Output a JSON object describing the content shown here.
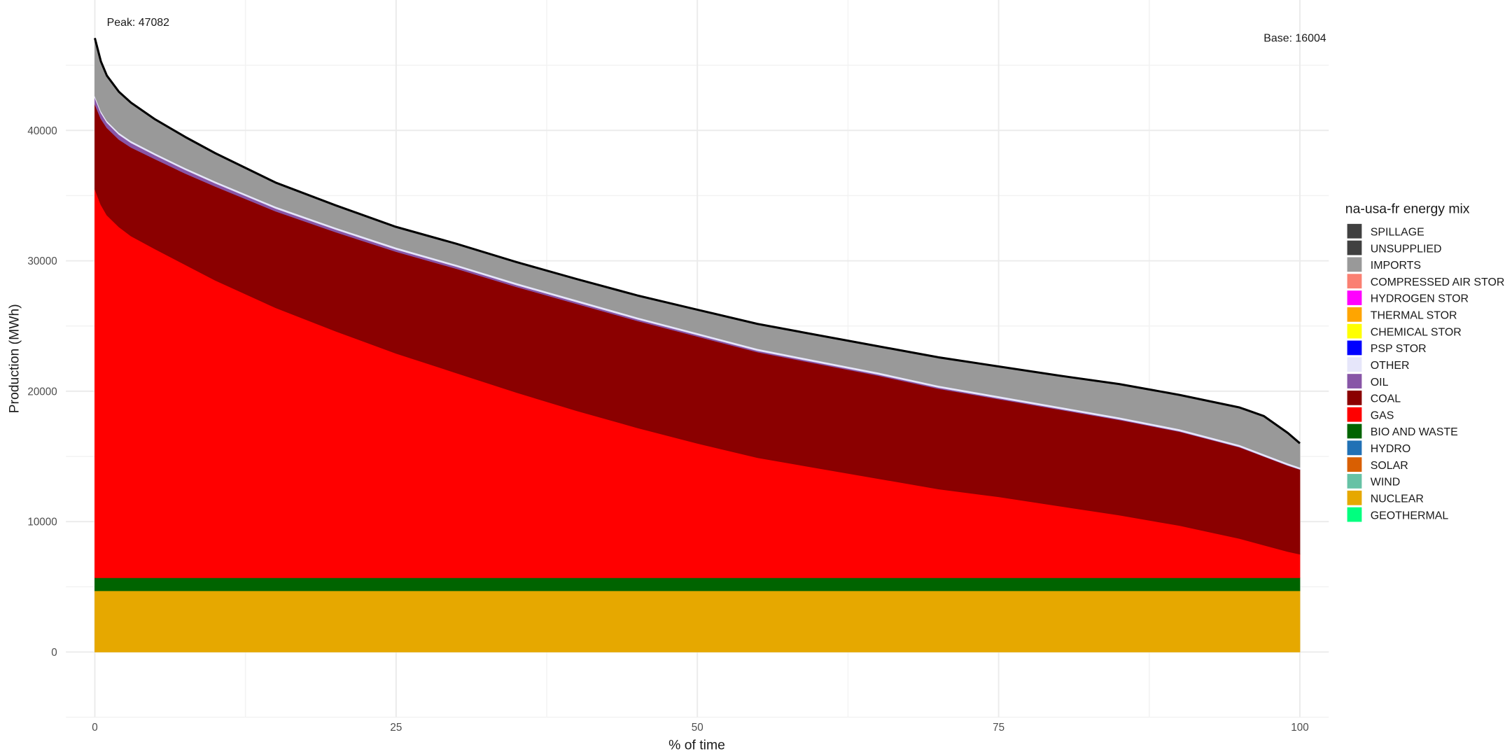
{
  "chart_data": {
    "type": "area",
    "title": "",
    "xlabel": "% of time",
    "ylabel": "Production (MWh)",
    "xlim": [
      -2.4,
      102.4
    ],
    "ylim": [
      -5000,
      50000
    ],
    "x_ticks": [
      0,
      25,
      50,
      75,
      100
    ],
    "y_ticks": [
      0,
      10000,
      20000,
      30000,
      40000
    ],
    "grid": true,
    "legend_position": "right",
    "legend_title": "na-usa-fr energy mix",
    "annotations": [
      {
        "text": "Peak: 47082",
        "x": 1,
        "y": 48000
      },
      {
        "text": "Base: 16004",
        "x": 97,
        "y": 46800
      }
    ],
    "legend": [
      {
        "name": "SPILLAGE",
        "color": "#404040"
      },
      {
        "name": "UNSUPPLIED",
        "color": "#404040"
      },
      {
        "name": "IMPORTS",
        "color": "#999999"
      },
      {
        "name": "COMPRESSED AIR STOR",
        "color": "#fa8072"
      },
      {
        "name": "HYDROGEN STOR",
        "color": "#ff00ff"
      },
      {
        "name": "THERMAL STOR",
        "color": "#ffa500"
      },
      {
        "name": "CHEMICAL STOR",
        "color": "#ffff00"
      },
      {
        "name": "PSP STOR",
        "color": "#0000ff"
      },
      {
        "name": "OTHER",
        "color": "#e6e6fa"
      },
      {
        "name": "OIL",
        "color": "#8856a7"
      },
      {
        "name": "COAL",
        "color": "#8b0000"
      },
      {
        "name": "GAS",
        "color": "#ff0000"
      },
      {
        "name": "BIO AND WASTE",
        "color": "#006400"
      },
      {
        "name": "HYDRO",
        "color": "#2171b5"
      },
      {
        "name": "SOLAR",
        "color": "#d95f02"
      },
      {
        "name": "WIND",
        "color": "#66c2a5"
      },
      {
        "name": "NUCLEAR",
        "color": "#e6a800"
      },
      {
        "name": "GEOTHERMAL",
        "color": "#00ff7f"
      }
    ],
    "x": [
      0,
      0.5,
      1,
      2,
      3,
      5,
      7.5,
      10,
      15,
      20,
      25,
      30,
      35,
      40,
      45,
      50,
      55,
      60,
      65,
      70,
      75,
      80,
      85,
      90,
      95,
      97,
      99,
      100
    ],
    "series": [
      {
        "name": "NUCLEAR",
        "color": "#e6a800",
        "values": [
          4700,
          4700,
          4700,
          4700,
          4700,
          4700,
          4700,
          4700,
          4700,
          4700,
          4700,
          4700,
          4700,
          4700,
          4700,
          4700,
          4700,
          4700,
          4700,
          4700,
          4700,
          4700,
          4700,
          4700,
          4700,
          4700,
          4700,
          4700
        ]
      },
      {
        "name": "BIO AND WASTE",
        "color": "#006400",
        "values": [
          1000,
          1000,
          1000,
          1000,
          1000,
          1000,
          1000,
          1000,
          1000,
          1000,
          1000,
          1000,
          1000,
          1000,
          1000,
          1000,
          1000,
          1000,
          1000,
          1000,
          1000,
          1000,
          1000,
          1000,
          1000,
          1000,
          1000,
          1000
        ]
      },
      {
        "name": "GAS",
        "color": "#ff0000",
        "values": [
          29800,
          28600,
          27800,
          26900,
          26200,
          25200,
          24000,
          22800,
          20700,
          18900,
          17200,
          15700,
          14200,
          12800,
          11500,
          10300,
          9200,
          8400,
          7600,
          6800,
          6200,
          5500,
          4800,
          4000,
          3000,
          2500,
          2000,
          1800
        ]
      },
      {
        "name": "COAL",
        "color": "#8b0000",
        "values": [
          6500,
          6600,
          6700,
          6700,
          6800,
          6900,
          7000,
          7200,
          7400,
          7600,
          7800,
          8000,
          8100,
          8200,
          8200,
          8200,
          8100,
          8000,
          7900,
          7700,
          7500,
          7400,
          7300,
          7200,
          7000,
          6800,
          6600,
          6500
        ]
      },
      {
        "name": "OIL",
        "color": "#8856a7",
        "values": [
          500,
          450,
          400,
          380,
          350,
          300,
          280,
          250,
          220,
          200,
          180,
          160,
          150,
          140,
          130,
          120,
          110,
          100,
          100,
          90,
          80,
          70,
          60,
          50,
          40,
          30,
          30,
          20
        ]
      },
      {
        "name": "OTHER",
        "color": "#e6e6fa",
        "values": [
          150,
          150,
          150,
          150,
          150,
          150,
          150,
          150,
          150,
          150,
          150,
          150,
          150,
          150,
          150,
          150,
          150,
          150,
          150,
          150,
          150,
          150,
          150,
          150,
          150,
          150,
          150,
          150
        ]
      },
      {
        "name": "IMPORTS",
        "color": "#999999",
        "values": [
          4432,
          3800,
          3450,
          3130,
          2930,
          2600,
          2370,
          2150,
          1830,
          1700,
          1570,
          1600,
          1600,
          1610,
          1670,
          1780,
          1890,
          1950,
          2000,
          2160,
          2270,
          2380,
          2540,
          2620,
          2860,
          2920,
          2320,
          1834
        ]
      }
    ],
    "total_line": {
      "name": "total",
      "color": "#000000",
      "values": [
        47082,
        45300,
        44200,
        42960,
        42130,
        40850,
        39500,
        38250,
        36000,
        34250,
        32600,
        31310,
        29900,
        28600,
        27350,
        26250,
        25160,
        24300,
        23450,
        22600,
        21900,
        21200,
        20550,
        19720,
        18750,
        18100,
        16800,
        16004
      ]
    }
  }
}
